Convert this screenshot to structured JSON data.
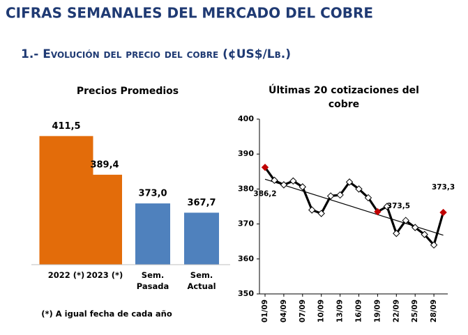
{
  "header": {
    "title": "CIFRAS SEMANALES DEL MERCADO DEL COBRE",
    "subtitle": "1.- Evolución del precio del cobre (¢US$/Lb.)"
  },
  "chart_data": [
    {
      "type": "bar",
      "title": "Precios Promedios",
      "categories": [
        "2022 (*)",
        "2023 (*)",
        "Sem. Pasada",
        "Sem. Actual"
      ],
      "values": [
        411.5,
        389.4,
        373.0,
        367.7
      ],
      "value_labels": [
        "411,5",
        "389,4",
        "373,0",
        "367,7"
      ],
      "colors": [
        "#e36c0a",
        "#e36c0a",
        "#4f81bd",
        "#4f81bd"
      ],
      "ylim": [
        338,
        420
      ],
      "note": "(*) A igual fecha de cada año"
    },
    {
      "type": "line",
      "title": "Últimas 20 cotizaciones del cobre",
      "categories": [
        "01/09",
        null,
        "04/09",
        null,
        "07/09",
        null,
        "10/09",
        null,
        "13/09",
        null,
        "16/09",
        null,
        "19/09",
        null,
        "22/09",
        null,
        "25/09",
        null,
        "28/09",
        null
      ],
      "values": [
        386.2,
        382.5,
        381.2,
        382.3,
        380.6,
        374.0,
        373.0,
        378.0,
        378.3,
        382.0,
        380.0,
        377.5,
        373.5,
        375.0,
        367.3,
        371.0,
        369.0,
        367.0,
        364.0,
        373.3
      ],
      "value_labels": [
        "386,2",
        null,
        null,
        null,
        null,
        null,
        null,
        null,
        null,
        null,
        null,
        null,
        "373,5",
        null,
        null,
        null,
        null,
        null,
        null,
        "373,3"
      ],
      "color": "#000000",
      "highlight_color": "#c00000",
      "trend_color": "#000000",
      "trend": [
        382.8,
        366.8
      ],
      "ylim": [
        350,
        400
      ],
      "yticks": [
        350,
        360,
        370,
        380,
        390,
        400
      ]
    }
  ]
}
